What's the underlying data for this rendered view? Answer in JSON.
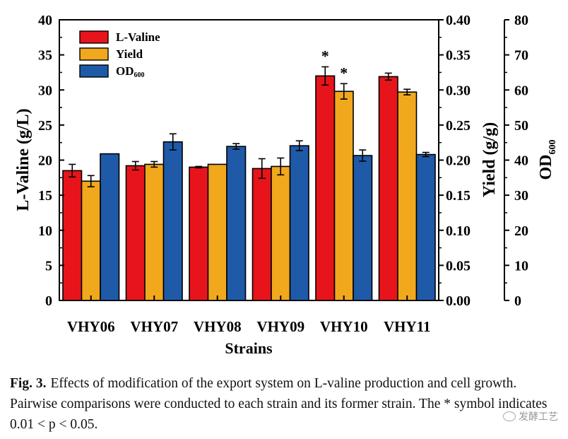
{
  "chart_data": {
    "type": "bar",
    "categories": [
      "VHY06",
      "VHY07",
      "VHY08",
      "VHY09",
      "VHY10",
      "VHY11"
    ],
    "series": [
      {
        "name": "L-Valine",
        "axis": "left",
        "color": "#e8141c",
        "values": [
          18.5,
          19.2,
          19.0,
          18.8,
          32.0,
          31.9
        ],
        "errors": [
          0.9,
          0.6,
          0.1,
          1.4,
          1.3,
          0.5
        ]
      },
      {
        "name": "Yield",
        "axis": "middle",
        "color": "#f2a81d",
        "values": [
          0.17,
          0.194,
          0.194,
          0.191,
          0.298,
          0.297
        ],
        "errors": [
          0.008,
          0.004,
          0.0,
          0.012,
          0.011,
          0.004
        ]
      },
      {
        "name": "OD600",
        "axis": "right",
        "color": "#1e5aa8",
        "values": [
          41.8,
          45.2,
          43.9,
          44.1,
          41.3,
          41.6
        ],
        "errors": [
          0.0,
          2.3,
          0.8,
          1.4,
          1.6,
          0.6
        ]
      }
    ],
    "annotations": [
      {
        "text": "*",
        "category": "VHY10",
        "series": "L-Valine"
      },
      {
        "text": "*",
        "category": "VHY10",
        "series": "Yield"
      }
    ],
    "legend": {
      "placement": "top-left",
      "entries": [
        {
          "label": "L-Valine",
          "color": "#e8141c"
        },
        {
          "label": "Yield",
          "color": "#f2a81d"
        },
        {
          "label": "OD",
          "sub": "600",
          "color": "#1e5aa8"
        }
      ]
    },
    "xlabel": "Strains",
    "ylabel_left": "L-Valine (g/L)",
    "ylabel_middle": "Yield (g/g)",
    "ylabel_right": "OD",
    "ylabel_right_sub": "600",
    "y_left": {
      "lim": [
        0,
        40
      ],
      "ticks": [
        "0",
        "5",
        "10",
        "15",
        "20",
        "25",
        "30",
        "35",
        "40"
      ]
    },
    "y_middle": {
      "lim": [
        0,
        0.4
      ],
      "ticks": [
        "0.00",
        "0.05",
        "0.10",
        "0.15",
        "0.20",
        "0.25",
        "0.30",
        "0.35",
        "0.40"
      ]
    },
    "y_right": {
      "lim": [
        0,
        80
      ],
      "ticks": [
        "0",
        "10",
        "20",
        "30",
        "40",
        "50",
        "60",
        "70",
        "80"
      ]
    }
  },
  "caption": {
    "label": "Fig. 3.",
    "text": "Effects of modification of the export system on L-valine production and cell growth. Pairwise comparisons were conducted to each strain and its former strain. The * symbol indicates 0.01 < p < 0.05."
  },
  "watermark": {
    "text": "发酵工艺"
  }
}
